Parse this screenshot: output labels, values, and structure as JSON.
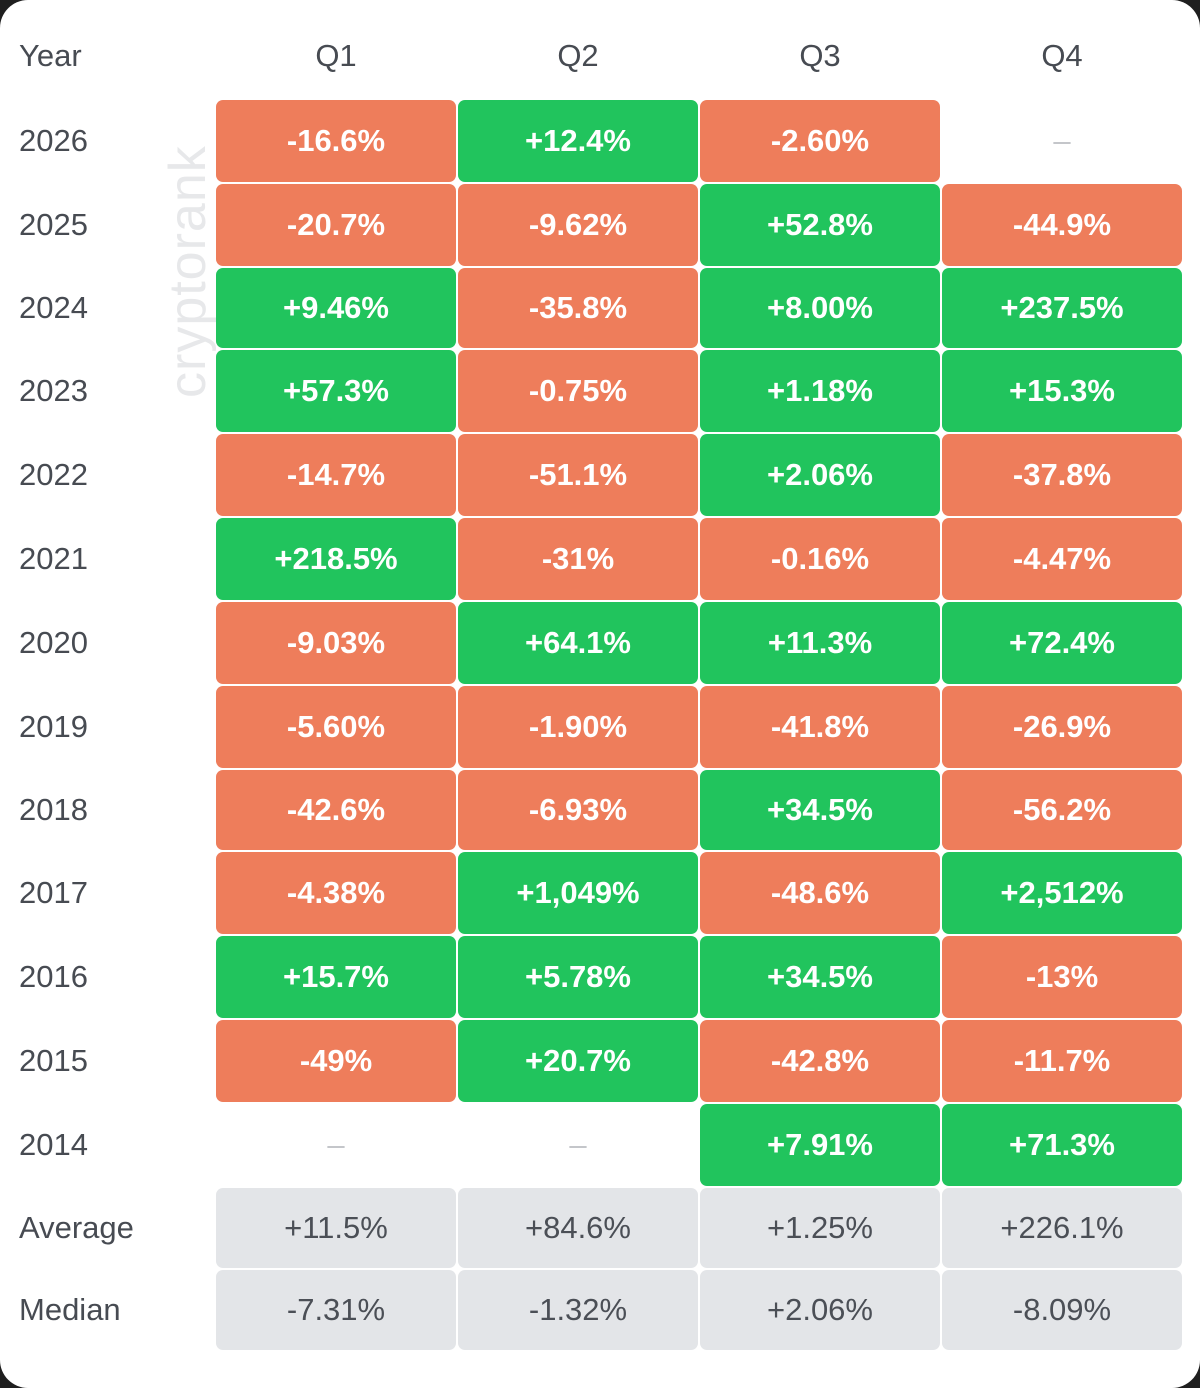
{
  "watermark": "cryptorank",
  "chart_data": {
    "type": "table",
    "columns": [
      "Year",
      "Q1",
      "Q2",
      "Q3",
      "Q4"
    ],
    "rows": [
      {
        "year": "2026",
        "cells": [
          {
            "text": "-16.6%",
            "sign": "neg"
          },
          {
            "text": "+12.4%",
            "sign": "pos"
          },
          {
            "text": "-2.60%",
            "sign": "neg"
          },
          {
            "text": "–",
            "sign": "empty"
          }
        ]
      },
      {
        "year": "2025",
        "cells": [
          {
            "text": "-20.7%",
            "sign": "neg"
          },
          {
            "text": "-9.62%",
            "sign": "neg"
          },
          {
            "text": "+52.8%",
            "sign": "pos"
          },
          {
            "text": "-44.9%",
            "sign": "neg"
          }
        ]
      },
      {
        "year": "2024",
        "cells": [
          {
            "text": "+9.46%",
            "sign": "pos"
          },
          {
            "text": "-35.8%",
            "sign": "neg"
          },
          {
            "text": "+8.00%",
            "sign": "pos"
          },
          {
            "text": "+237.5%",
            "sign": "pos"
          }
        ]
      },
      {
        "year": "2023",
        "cells": [
          {
            "text": "+57.3%",
            "sign": "pos"
          },
          {
            "text": "-0.75%",
            "sign": "neg"
          },
          {
            "text": "+1.18%",
            "sign": "pos"
          },
          {
            "text": "+15.3%",
            "sign": "pos"
          }
        ]
      },
      {
        "year": "2022",
        "cells": [
          {
            "text": "-14.7%",
            "sign": "neg"
          },
          {
            "text": "-51.1%",
            "sign": "neg"
          },
          {
            "text": "+2.06%",
            "sign": "pos"
          },
          {
            "text": "-37.8%",
            "sign": "neg"
          }
        ]
      },
      {
        "year": "2021",
        "cells": [
          {
            "text": "+218.5%",
            "sign": "pos"
          },
          {
            "text": "-31%",
            "sign": "neg"
          },
          {
            "text": "-0.16%",
            "sign": "neg"
          },
          {
            "text": "-4.47%",
            "sign": "neg"
          }
        ]
      },
      {
        "year": "2020",
        "cells": [
          {
            "text": "-9.03%",
            "sign": "neg"
          },
          {
            "text": "+64.1%",
            "sign": "pos"
          },
          {
            "text": "+11.3%",
            "sign": "pos"
          },
          {
            "text": "+72.4%",
            "sign": "pos"
          }
        ]
      },
      {
        "year": "2019",
        "cells": [
          {
            "text": "-5.60%",
            "sign": "neg"
          },
          {
            "text": "-1.90%",
            "sign": "neg"
          },
          {
            "text": "-41.8%",
            "sign": "neg"
          },
          {
            "text": "-26.9%",
            "sign": "neg"
          }
        ]
      },
      {
        "year": "2018",
        "cells": [
          {
            "text": "-42.6%",
            "sign": "neg"
          },
          {
            "text": "-6.93%",
            "sign": "neg"
          },
          {
            "text": "+34.5%",
            "sign": "pos"
          },
          {
            "text": "-56.2%",
            "sign": "neg"
          }
        ]
      },
      {
        "year": "2017",
        "cells": [
          {
            "text": "-4.38%",
            "sign": "neg"
          },
          {
            "text": "+1,049%",
            "sign": "pos"
          },
          {
            "text": "-48.6%",
            "sign": "neg"
          },
          {
            "text": "+2,512%",
            "sign": "pos"
          }
        ]
      },
      {
        "year": "2016",
        "cells": [
          {
            "text": "+15.7%",
            "sign": "pos"
          },
          {
            "text": "+5.78%",
            "sign": "pos"
          },
          {
            "text": "+34.5%",
            "sign": "pos"
          },
          {
            "text": "-13%",
            "sign": "neg"
          }
        ]
      },
      {
        "year": "2015",
        "cells": [
          {
            "text": "-49%",
            "sign": "neg"
          },
          {
            "text": "+20.7%",
            "sign": "pos"
          },
          {
            "text": "-42.8%",
            "sign": "neg"
          },
          {
            "text": "-11.7%",
            "sign": "neg"
          }
        ]
      },
      {
        "year": "2014",
        "cells": [
          {
            "text": "–",
            "sign": "empty"
          },
          {
            "text": "–",
            "sign": "empty"
          },
          {
            "text": "+7.91%",
            "sign": "pos"
          },
          {
            "text": "+71.3%",
            "sign": "pos"
          }
        ]
      }
    ],
    "summary": [
      {
        "label": "Average",
        "cells": [
          "+11.5%",
          "+84.6%",
          "+1.25%",
          "+226.1%"
        ]
      },
      {
        "label": "Median",
        "cells": [
          "-7.31%",
          "-1.32%",
          "+2.06%",
          "-8.09%"
        ]
      }
    ],
    "colors": {
      "positive": "#21c45d",
      "negative": "#ee7d5b",
      "summary": "#e3e5e8",
      "empty": "#c4c6ca"
    }
  }
}
